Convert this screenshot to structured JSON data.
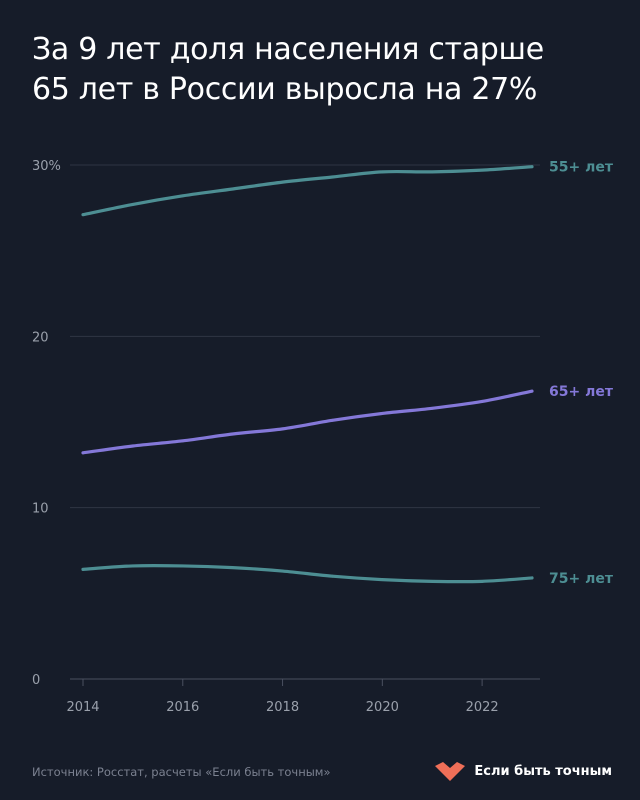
{
  "chart_data": {
    "type": "line",
    "title_lines": [
      "За 9 лет доля населения старше",
      "65 лет в России выросла на 27%"
    ],
    "xlabel": "",
    "ylabel": "",
    "xlim": [
      2014,
      2023
    ],
    "ylim": [
      0,
      30
    ],
    "y_ticks": [
      {
        "value": 0,
        "label": "0"
      },
      {
        "value": 10,
        "label": "10"
      },
      {
        "value": 20,
        "label": "20"
      },
      {
        "value": 30,
        "label": "30%"
      }
    ],
    "x_ticks": [
      {
        "value": 2014,
        "label": "2014"
      },
      {
        "value": 2016,
        "label": "2016"
      },
      {
        "value": 2018,
        "label": "2018"
      },
      {
        "value": 2020,
        "label": "2020"
      },
      {
        "value": 2022,
        "label": "2022"
      }
    ],
    "grid": true,
    "x": [
      2014,
      2015,
      2016,
      2017,
      2018,
      2019,
      2020,
      2021,
      2022,
      2023
    ],
    "series": [
      {
        "name": "55+ лет",
        "color": "#4d8e93",
        "values": [
          27.1,
          27.7,
          28.2,
          28.6,
          29.0,
          29.3,
          29.6,
          29.6,
          29.7,
          29.9
        ]
      },
      {
        "name": "65+ лет",
        "color": "#8478d8",
        "values": [
          13.2,
          13.6,
          13.9,
          14.3,
          14.6,
          15.1,
          15.5,
          15.8,
          16.2,
          16.8
        ]
      },
      {
        "name": "75+ лет",
        "color": "#4d8e93",
        "values": [
          6.4,
          6.6,
          6.6,
          6.5,
          6.3,
          6.0,
          5.8,
          5.7,
          5.7,
          5.9
        ]
      }
    ],
    "legend_placement": "right-end-labels"
  },
  "footer": {
    "source": "Источник: Росстат, расчеты «Если быть точным»",
    "brand_name": "Если быть точным",
    "brand_color": "#ef6f58"
  }
}
